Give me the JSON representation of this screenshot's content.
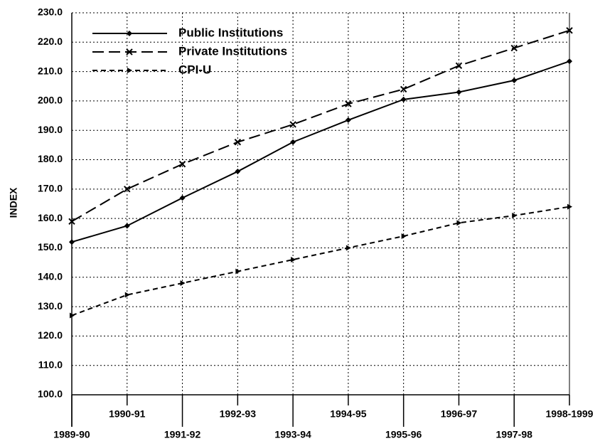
{
  "chart_data": {
    "type": "line",
    "y_label": "INDEX",
    "categories": [
      "1989-90",
      "1990-91",
      "1991-92",
      "1992-93",
      "1993-94",
      "1994-95",
      "1995-96",
      "1996-97",
      "1997-98",
      "1998-1999"
    ],
    "series": [
      {
        "name": "Public Institutions",
        "color": "#000000",
        "dash": "solid",
        "marker": "diamond",
        "values": [
          152,
          157.5,
          167,
          176,
          186,
          193.5,
          200.5,
          203,
          207,
          213.5
        ]
      },
      {
        "name": "Private Institutions",
        "color": "#000000",
        "dash": "long",
        "marker": "x",
        "values": [
          159,
          170,
          178.5,
          186,
          192,
          199,
          204,
          212,
          218,
          224
        ]
      },
      {
        "name": "CPI-U",
        "color": "#000000",
        "dash": "short",
        "marker": "triangle",
        "values": [
          127,
          134,
          138,
          142,
          146,
          150,
          154,
          158.5,
          161,
          164
        ]
      }
    ],
    "ylim": [
      100,
      230
    ],
    "yticks": [
      {
        "value": 100,
        "label": "100.0"
      },
      {
        "value": 110,
        "label": "110.0"
      },
      {
        "value": 120,
        "label": "120.0"
      },
      {
        "value": 130,
        "label": "130.0"
      },
      {
        "value": 140,
        "label": "140.0"
      },
      {
        "value": 150,
        "label": "150.0"
      },
      {
        "value": 160,
        "label": "160.0"
      },
      {
        "value": 170,
        "label": "170.0"
      },
      {
        "value": 180,
        "label": "180.0"
      },
      {
        "value": 190,
        "label": "190.0"
      },
      {
        "value": 200,
        "label": "200.0"
      },
      {
        "value": 210,
        "label": "210.0"
      },
      {
        "value": 220,
        "label": "220.0"
      },
      {
        "value": 230,
        "label": "230.0"
      }
    ],
    "grid": true,
    "legend": "top-left"
  }
}
